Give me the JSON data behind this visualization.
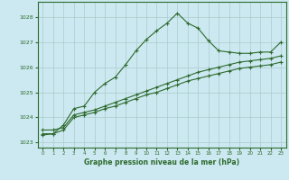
{
  "title": "Graphe pression niveau de la mer (hPa)",
  "bg_color": "#cce8f0",
  "grid_color": "#aacccc",
  "line_color": "#2d6a2d",
  "xlim": [
    -0.5,
    23.5
  ],
  "ylim": [
    1022.8,
    1028.6
  ],
  "yticks": [
    1023,
    1024,
    1025,
    1026,
    1027,
    1028
  ],
  "xticks": [
    0,
    1,
    2,
    3,
    4,
    5,
    6,
    7,
    8,
    9,
    10,
    11,
    12,
    13,
    14,
    15,
    16,
    17,
    18,
    19,
    20,
    21,
    22,
    23
  ],
  "series1_x": [
    0,
    1,
    2,
    3,
    4,
    5,
    6,
    7,
    8,
    9,
    10,
    11,
    12,
    13,
    14,
    15,
    16,
    17,
    18,
    19,
    20,
    21,
    22,
    23
  ],
  "series1_y": [
    1023.3,
    1023.35,
    1023.7,
    1024.35,
    1024.45,
    1025.0,
    1025.35,
    1025.6,
    1026.1,
    1026.65,
    1027.1,
    1027.45,
    1027.75,
    1028.15,
    1027.75,
    1027.55,
    1027.05,
    1026.65,
    1026.6,
    1026.55,
    1026.55,
    1026.6,
    1026.6,
    1027.0
  ],
  "series2_x": [
    0,
    1,
    2,
    3,
    4,
    5,
    6,
    7,
    8,
    9,
    10,
    11,
    12,
    13,
    14,
    15,
    16,
    17,
    18,
    19,
    20,
    21,
    22,
    23
  ],
  "series2_y": [
    1023.5,
    1023.5,
    1023.6,
    1024.1,
    1024.2,
    1024.3,
    1024.45,
    1024.6,
    1024.75,
    1024.9,
    1025.05,
    1025.2,
    1025.35,
    1025.5,
    1025.65,
    1025.8,
    1025.9,
    1026.0,
    1026.1,
    1026.2,
    1026.25,
    1026.3,
    1026.35,
    1026.45
  ],
  "series3_x": [
    0,
    1,
    2,
    3,
    4,
    5,
    6,
    7,
    8,
    9,
    10,
    11,
    12,
    13,
    14,
    15,
    16,
    17,
    18,
    19,
    20,
    21,
    22,
    23
  ],
  "series3_y": [
    1023.35,
    1023.35,
    1023.5,
    1024.0,
    1024.1,
    1024.2,
    1024.35,
    1024.45,
    1024.6,
    1024.75,
    1024.9,
    1025.0,
    1025.15,
    1025.3,
    1025.45,
    1025.55,
    1025.65,
    1025.75,
    1025.85,
    1025.95,
    1026.0,
    1026.05,
    1026.1,
    1026.2
  ]
}
